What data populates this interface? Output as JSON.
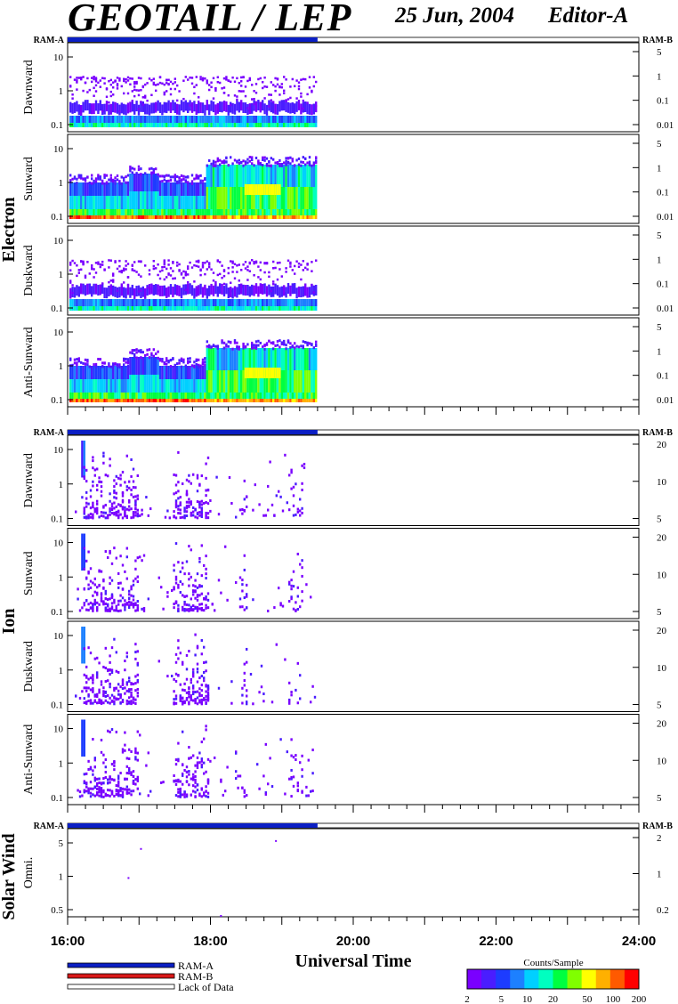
{
  "header": {
    "title": "GEOTAIL / LEP",
    "date": "25 Jun, 2004",
    "editor": "Editor-A"
  },
  "labels": {
    "ram_a": "RAM-A",
    "ram_b": "RAM-B",
    "x_axis_title": "Universal Time",
    "colorbar_title": "Counts/Sample"
  },
  "legend": [
    {
      "label": "RAM-A",
      "color": "#0b1fc4"
    },
    {
      "label": "RAM-B",
      "color": "#d81818"
    },
    {
      "label": "Lack of Data",
      "color": "#ffffff"
    }
  ],
  "chart_data": {
    "type": "heatmap",
    "x_axis": {
      "range": [
        "16:00",
        "24:00"
      ],
      "tick_labels": [
        "16:00",
        "18:00",
        "20:00",
        "22:00",
        "24:00"
      ],
      "label": "Universal Time"
    },
    "data_coverage": {
      "start": "16:00",
      "end": "19:30",
      "mode": "RAM-A",
      "remainder": "Lack of Data"
    },
    "colorbar": {
      "title": "Counts/Sample",
      "ticks": [
        "2",
        "5",
        "10",
        "20",
        "50",
        "100",
        "200"
      ],
      "range": [
        2,
        200
      ],
      "colors": [
        "#7a00ff",
        "#4a1dff",
        "#1d3cff",
        "#1d80ff",
        "#00d0ff",
        "#00ffc0",
        "#00ff40",
        "#80ff00",
        "#ffff00",
        "#ffb000",
        "#ff5a00",
        "#ff0000"
      ]
    },
    "groups": [
      {
        "name": "Electron",
        "panels": [
          {
            "name": "Dawnward",
            "left_ticks": [
              "10",
              "1",
              "0.1"
            ],
            "right_ticks": [
              "5",
              "1",
              "0.1",
              "0.01"
            ],
            "pattern": "weak"
          },
          {
            "name": "Sunward",
            "left_ticks": [
              "10",
              "1",
              "0.1"
            ],
            "right_ticks": [
              "5",
              "1",
              "0.1",
              "0.01"
            ],
            "pattern": "strong"
          },
          {
            "name": "Duskward",
            "left_ticks": [
              "10",
              "1",
              "0.1"
            ],
            "right_ticks": [
              "5",
              "1",
              "0.1",
              "0.01"
            ],
            "pattern": "weak"
          },
          {
            "name": "Anti-Sunward",
            "left_ticks": [
              "10",
              "1",
              "0.1"
            ],
            "right_ticks": [
              "5",
              "1",
              "0.1",
              "0.01"
            ],
            "pattern": "strong"
          }
        ]
      },
      {
        "name": "Ion",
        "panels": [
          {
            "name": "Dawnward",
            "left_ticks": [
              "10",
              "1",
              "0.1"
            ],
            "right_ticks": [
              "20",
              "10",
              "5"
            ],
            "pattern": "ion"
          },
          {
            "name": "Sunward",
            "left_ticks": [
              "10",
              "1",
              "0.1"
            ],
            "right_ticks": [
              "20",
              "10",
              "5"
            ],
            "pattern": "ion"
          },
          {
            "name": "Duskward",
            "left_ticks": [
              "10",
              "1",
              "0.1"
            ],
            "right_ticks": [
              "20",
              "10",
              "5"
            ],
            "pattern": "ion"
          },
          {
            "name": "Anti-Sunward",
            "left_ticks": [
              "10",
              "1",
              "0.1"
            ],
            "right_ticks": [
              "20",
              "10",
              "5"
            ],
            "pattern": "ion"
          }
        ]
      },
      {
        "name": "Solar Wind",
        "panels": [
          {
            "name": "Omni.",
            "left_ticks": [
              "5",
              "1",
              "0.5"
            ],
            "right_ticks": [
              "2",
              "1",
              "0.2"
            ],
            "pattern": "sparse"
          }
        ]
      }
    ]
  }
}
